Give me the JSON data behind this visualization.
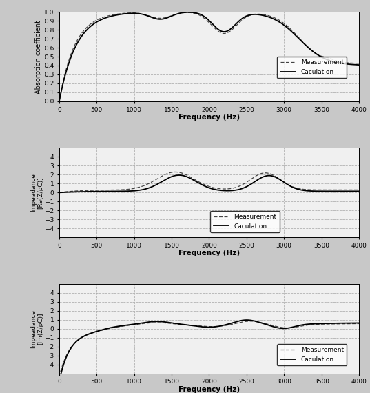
{
  "freq_range": [
    0,
    4000
  ],
  "xticks": [
    0,
    500,
    1000,
    1500,
    2000,
    2500,
    3000,
    3500,
    4000
  ],
  "xlabel": "Frequency (Hz)",
  "plot1_ylabel": "Absorption coefficient",
  "plot1_ylim": [
    0,
    1
  ],
  "plot1_yticks": [
    0,
    0.1,
    0.2,
    0.3,
    0.4,
    0.5,
    0.6,
    0.7,
    0.8,
    0.9,
    1
  ],
  "plot2_ylabel": "Impeadance\n[Re(Z/ρC)]",
  "plot2_ylim": [
    -5,
    5
  ],
  "plot2_yticks": [
    -4,
    -3,
    -2,
    -1,
    0,
    1,
    2,
    3,
    4
  ],
  "plot3_ylabel": "Impeadance\n[Im(Z/ρC)]",
  "plot3_ylim": [
    -5,
    5
  ],
  "plot3_yticks": [
    -4,
    -3,
    -2,
    -1,
    0,
    1,
    2,
    3,
    4
  ],
  "legend_meas": "Measurement",
  "legend_calc": "Caculation",
  "meas_color": "#444444",
  "calc_color": "#000000",
  "bg_color": "#f0f0f0",
  "grid_color": "#aaaaaa",
  "fig_bg": "#c8c8c8"
}
